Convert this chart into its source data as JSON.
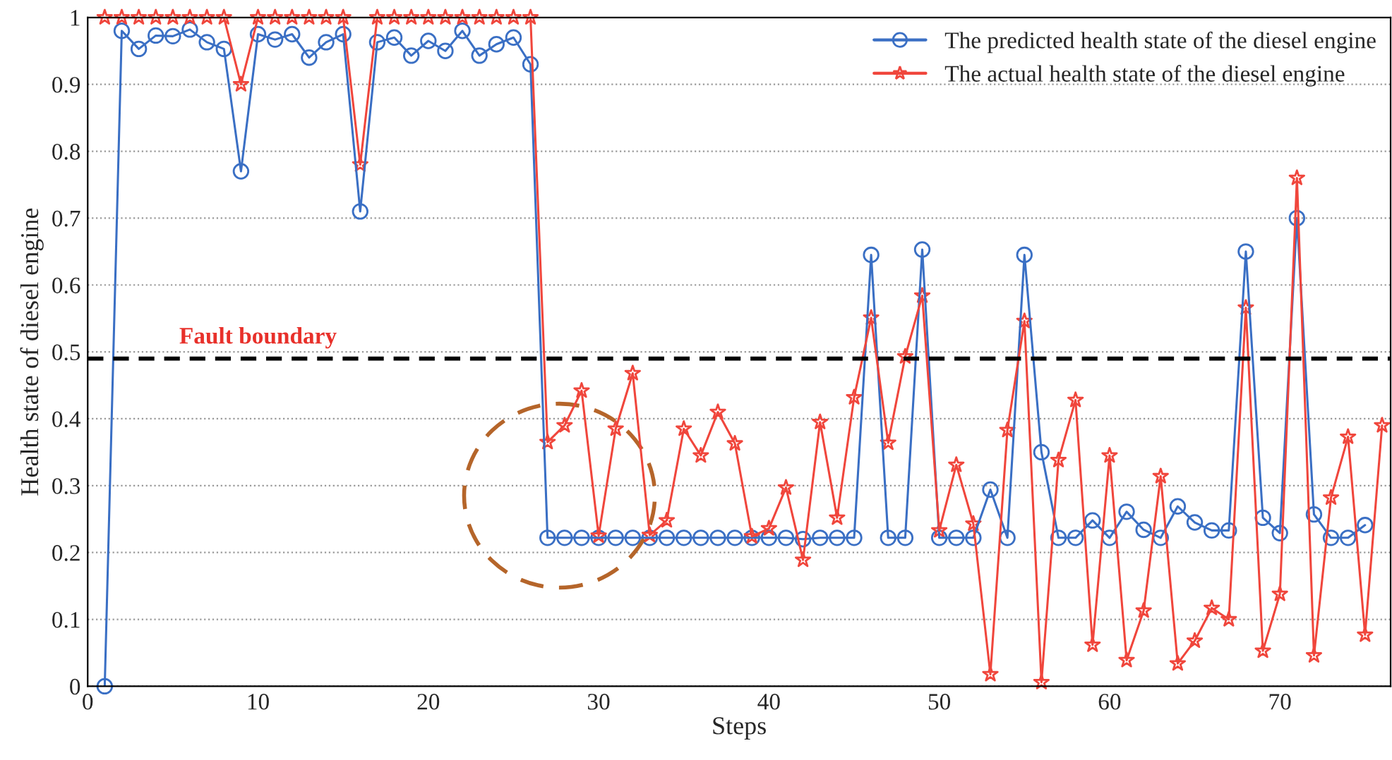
{
  "chart_data": {
    "type": "line",
    "xlabel": "Steps",
    "ylabel": "Health state of diesel engine",
    "x": [
      1,
      2,
      3,
      4,
      5,
      6,
      7,
      8,
      9,
      10,
      11,
      12,
      13,
      14,
      15,
      16,
      17,
      18,
      19,
      20,
      21,
      22,
      23,
      24,
      25,
      26,
      27,
      28,
      29,
      30,
      31,
      32,
      33,
      34,
      35,
      36,
      37,
      38,
      39,
      40,
      41,
      42,
      43,
      44,
      45,
      46,
      47,
      48,
      49,
      50,
      51,
      52,
      53,
      54,
      55,
      56,
      57,
      58,
      59,
      60,
      61,
      62,
      63,
      64,
      65,
      66,
      67,
      68,
      69,
      70,
      71,
      72,
      73,
      74,
      75,
      76
    ],
    "series": [
      {
        "name": "The predicted health state of the diesel engine",
        "color": "#3a6fc4",
        "marker": "circle",
        "values": [
          0,
          0.98,
          0.953,
          0.973,
          0.972,
          0.982,
          0.963,
          0.953,
          0.77,
          0.975,
          0.967,
          0.975,
          0.94,
          0.963,
          0.975,
          0.71,
          0.963,
          0.97,
          0.943,
          0.965,
          0.95,
          0.98,
          0.943,
          0.96,
          0.97,
          0.93,
          0.222,
          0.222,
          0.222,
          0.222,
          0.222,
          0.222,
          0.222,
          0.222,
          0.222,
          0.222,
          0.222,
          0.222,
          0.222,
          0.222,
          0.222,
          0.22,
          0.222,
          0.222,
          0.222,
          0.645,
          0.222,
          0.222,
          0.653,
          0.222,
          0.222,
          0.222,
          0.294,
          0.222,
          0.645,
          0.35,
          0.222,
          0.222,
          0.248,
          0.222,
          0.261,
          0.234,
          0.222,
          0.269,
          0.245,
          0.233,
          0.233,
          0.65,
          0.252,
          0.229,
          0.7,
          0.257,
          0.222,
          0.222,
          0.241,
          null
        ]
      },
      {
        "name": "The actual health state of the diesel engine",
        "color": "#f0463c",
        "marker": "star",
        "values": [
          1,
          1,
          1,
          1,
          1,
          1,
          1,
          1,
          0.9,
          1,
          1,
          1,
          1,
          1,
          1,
          0.78,
          1,
          1,
          1,
          1,
          1,
          1,
          1,
          1,
          1,
          1,
          0.365,
          0.39,
          0.442,
          0.225,
          0.385,
          0.468,
          0.226,
          0.248,
          0.385,
          0.345,
          0.41,
          0.363,
          0.224,
          0.236,
          0.297,
          0.189,
          0.395,
          0.252,
          0.432,
          0.551,
          0.364,
          0.493,
          0.584,
          0.233,
          0.331,
          0.243,
          0.018,
          0.383,
          0.546,
          0.006,
          0.338,
          0.428,
          0.062,
          0.345,
          0.039,
          0.113,
          0.314,
          0.034,
          0.068,
          0.117,
          0.1,
          0.566,
          0.053,
          0.138,
          0.76,
          0.046,
          0.282,
          0.373,
          0.077,
          0.39
        ]
      }
    ],
    "xlim": [
      0,
      76.5
    ],
    "ylim": [
      0,
      1
    ],
    "xticks": [
      0,
      10,
      20,
      30,
      40,
      50,
      60,
      70
    ],
    "yticks": [
      0,
      0.1,
      0.2,
      0.3,
      0.4,
      0.5,
      0.6,
      0.7,
      0.8,
      0.9,
      1
    ],
    "ref_lines": [
      {
        "axis": "y",
        "value": 0.49,
        "label": "Fault boundary",
        "color": "#000000",
        "line_style": "dashed"
      }
    ],
    "grid": "y",
    "legend": "top right",
    "line_style": "solid"
  }
}
